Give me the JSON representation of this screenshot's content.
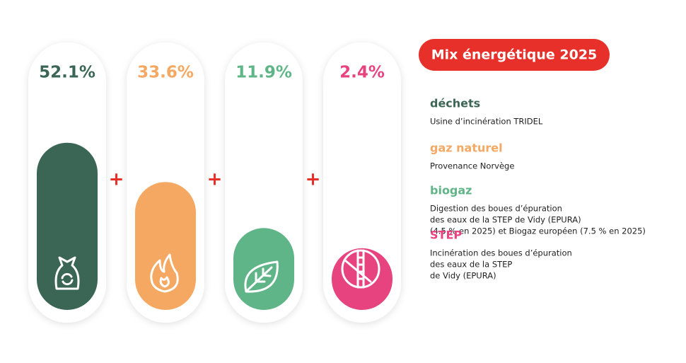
{
  "chart_data": {
    "type": "bar",
    "title": "Mix énergétique 2025",
    "categories": [
      "déchets",
      "gaz naturel",
      "biogaz",
      "STEP"
    ],
    "descriptions": [
      [
        "Usine d’incinération TRIDEL"
      ],
      [
        "Provenance Norvège"
      ],
      [
        "Digestion des boues d’épuration",
        "des eaux de la STEP de Vidy (EPURA)",
        "(4.5 % en 2025) et Biogaz européen (7.5 % en 2025)"
      ],
      [
        "Incinération des boues d’épuration",
        "des eaux de la STEP",
        "de Vidy (EPURA)"
      ]
    ],
    "values": [
      52.1,
      33.6,
      11.9,
      2.4
    ],
    "value_labels": [
      "52.1%",
      "33.6%",
      "11.9%",
      "2.4%"
    ],
    "colors": [
      "#3b6656",
      "#f5a862",
      "#5fb587",
      "#e6437f"
    ],
    "separator": "+"
  }
}
